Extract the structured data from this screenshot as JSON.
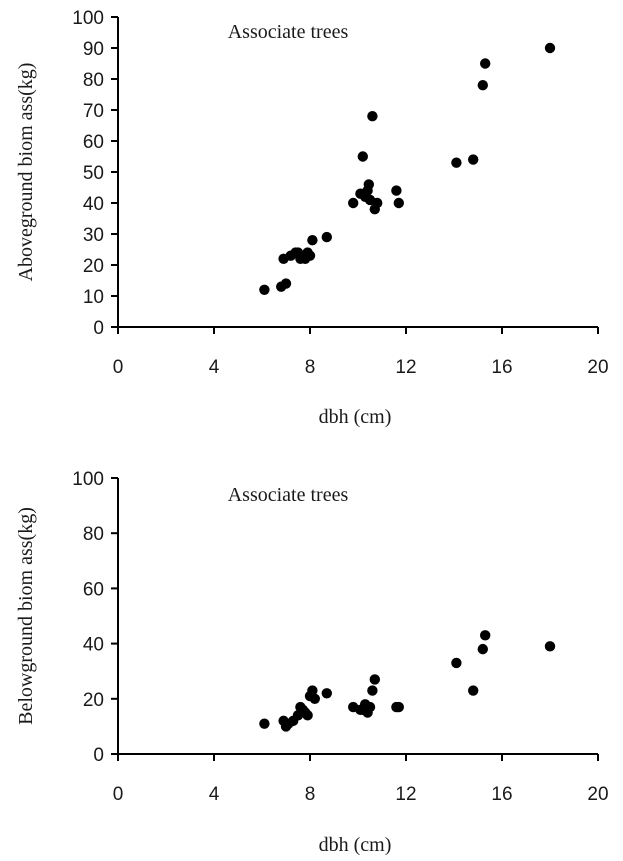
{
  "chart_data": [
    {
      "type": "scatter",
      "title": "Associate trees",
      "xlabel": "dbh (cm)",
      "ylabel": "Aboveground biom ass(kg)",
      "xlim": [
        0,
        20
      ],
      "ylim": [
        0,
        100
      ],
      "xticks": [
        "0",
        "4",
        "8",
        "12",
        "16",
        "20"
      ],
      "yticks": [
        "0",
        "10",
        "20",
        "30",
        "40",
        "50",
        "60",
        "70",
        "80",
        "90",
        "100"
      ],
      "grid": false,
      "x": [
        6.1,
        6.8,
        7.0,
        6.9,
        7.2,
        7.4,
        7.5,
        7.6,
        7.7,
        7.8,
        7.9,
        8.0,
        8.1,
        8.7,
        9.8,
        10.1,
        10.2,
        10.3,
        10.4,
        10.45,
        10.5,
        10.6,
        10.7,
        10.8,
        11.6,
        11.7,
        14.1,
        14.8,
        15.2,
        15.3,
        18.0
      ],
      "y": [
        12,
        13,
        14,
        22,
        23,
        24,
        24,
        22,
        23,
        22,
        24,
        23,
        28,
        29,
        40,
        43,
        55,
        42,
        44,
        46,
        41,
        68,
        38,
        40,
        44,
        40,
        53,
        54,
        78,
        85,
        90
      ]
    },
    {
      "type": "scatter",
      "title": "Associate trees",
      "xlabel": "dbh (cm)",
      "ylabel": "Belowground biom ass(kg)",
      "xlim": [
        0,
        20
      ],
      "ylim": [
        0,
        100
      ],
      "xticks": [
        "0",
        "4",
        "8",
        "12",
        "16",
        "20"
      ],
      "yticks": [
        "0",
        "20",
        "40",
        "60",
        "80",
        "100"
      ],
      "grid": false,
      "x": [
        6.1,
        6.9,
        7.0,
        7.1,
        7.3,
        7.5,
        7.6,
        7.7,
        7.8,
        7.9,
        8.0,
        8.1,
        8.2,
        8.7,
        9.8,
        10.1,
        10.2,
        10.3,
        10.4,
        10.5,
        10.6,
        10.7,
        11.6,
        11.7,
        14.1,
        14.8,
        15.2,
        15.3,
        18.0
      ],
      "y": [
        11,
        12,
        10,
        11,
        12,
        14,
        17,
        16,
        15,
        14,
        21,
        23,
        20,
        22,
        17,
        16,
        16,
        18,
        15,
        17,
        23,
        27,
        17,
        17,
        33,
        23,
        38,
        43,
        39
      ]
    }
  ]
}
